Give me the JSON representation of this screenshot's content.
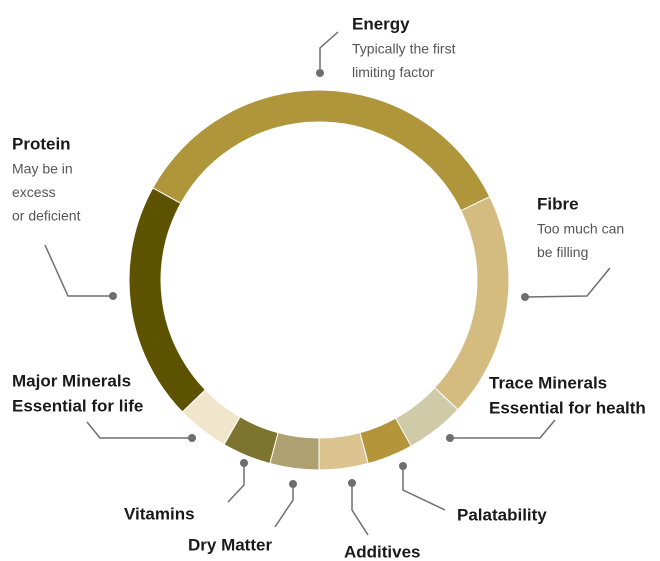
{
  "chart_data": {
    "type": "donut",
    "categories": [
      "Energy",
      "Fibre",
      "Trace Minerals",
      "Palatability",
      "Additives",
      "Dry Matter",
      "Vitamins",
      "Major Minerals",
      "Protein"
    ],
    "notes": [
      [
        "Typically the first",
        "limiting factor"
      ],
      [
        "Too much can",
        "be filling"
      ],
      [
        "Essential for health"
      ],
      null,
      null,
      null,
      null,
      [
        "Essential for life"
      ],
      [
        "May be in",
        "excess",
        "or deficient"
      ]
    ],
    "values": [
      125,
      69,
      18,
      14,
      15,
      15,
      15,
      16,
      73
    ],
    "colors": [
      "#b0963a",
      "#d4bc80",
      "#cfcaa8",
      "#b4953a",
      "#dcc490",
      "#aea070",
      "#7d7430",
      "#f0e6cc",
      "#5c5200"
    ]
  }
}
